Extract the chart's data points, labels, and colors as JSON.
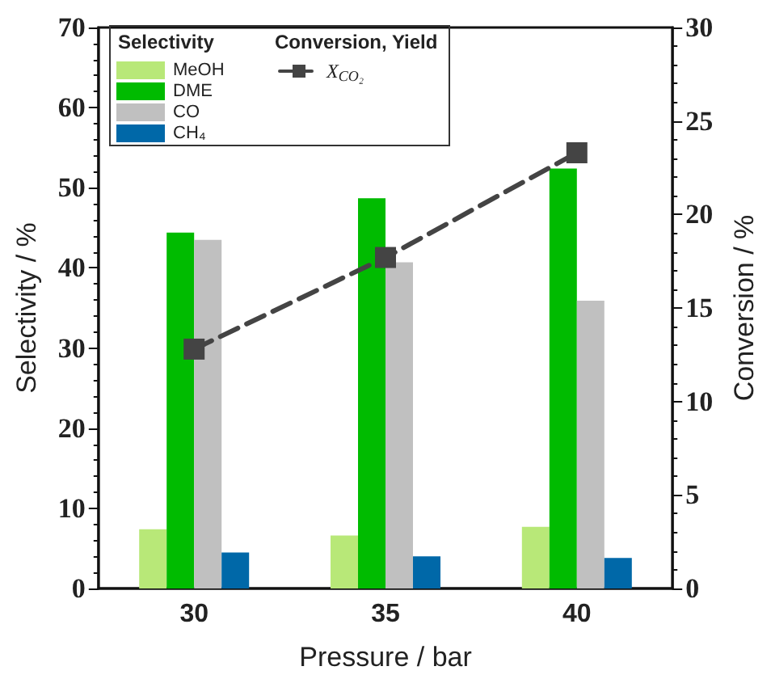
{
  "chart_data": {
    "type": "bar",
    "xlabel": "Pressure / bar",
    "ylabel": "Selectivity / %",
    "y2label": "Conversion / %",
    "legend_title": "Selectivity",
    "annotations": [
      "Conversion, Yield"
    ],
    "categories": [
      "30",
      "35",
      "40"
    ],
    "series": [
      {
        "name": "MeOH",
        "color": "#b8e878",
        "values": [
          7.4,
          6.6,
          7.7
        ]
      },
      {
        "name": "DME",
        "color": "#00bb00",
        "values": [
          44.4,
          48.7,
          52.4
        ]
      },
      {
        "name": "CO",
        "color": "#c0c0c0",
        "values": [
          43.5,
          40.7,
          35.9
        ]
      },
      {
        "name": "CH₄",
        "color": "#0068a8",
        "values": [
          4.5,
          4.0,
          3.8
        ]
      },
      {
        "name": "X$_{CO₂}$",
        "type": "line",
        "axis": "y2",
        "color": "#444444",
        "marker": "square",
        "line_style": "dashed",
        "values": [
          12.8,
          17.7,
          23.3
        ]
      }
    ],
    "ylim": [
      0,
      70
    ],
    "yticks": [
      0,
      10,
      20,
      30,
      40,
      50,
      60,
      70
    ],
    "y2lim": [
      0,
      30
    ],
    "y2ticks": [
      0,
      5,
      10,
      15,
      20,
      25,
      30
    ],
    "grid": false,
    "legend": "top left"
  }
}
